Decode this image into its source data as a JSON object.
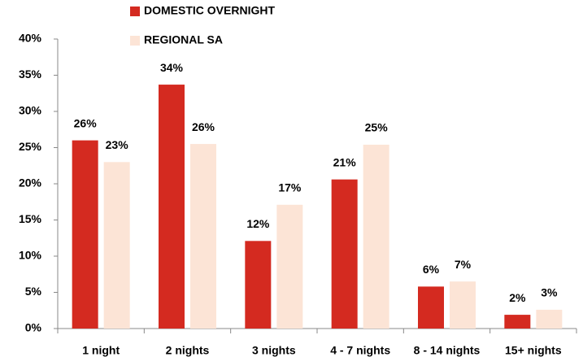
{
  "chart_data": {
    "type": "bar",
    "categories": [
      "1 night",
      "2 nights",
      "3 nights",
      "4 - 7 nights",
      "8 - 14 nights",
      "15+ nights"
    ],
    "series": [
      {
        "name": "DOMESTIC OVERNIGHT",
        "color": "#d42a20",
        "values": [
          26,
          33.7,
          12.1,
          20.6,
          5.8,
          1.9
        ],
        "value_labels": [
          "26%",
          "34%",
          "12%",
          "21%",
          "6%",
          "2%"
        ]
      },
      {
        "name": "REGIONAL SA",
        "color": "#fce4d6",
        "values": [
          23,
          25.5,
          17.1,
          25.4,
          6.5,
          2.6
        ],
        "value_labels": [
          "23%",
          "26%",
          "17%",
          "25%",
          "7%",
          "3%"
        ]
      }
    ],
    "ylim": [
      0,
      40
    ],
    "yticks": [
      {
        "value": 0,
        "label": "0%"
      },
      {
        "value": 5,
        "label": "5%"
      },
      {
        "value": 10,
        "label": "10%"
      },
      {
        "value": 15,
        "label": "15%"
      },
      {
        "value": 20,
        "label": "20%"
      },
      {
        "value": 25,
        "label": "25%"
      },
      {
        "value": 30,
        "label": "30%"
      },
      {
        "value": 35,
        "label": "35%"
      },
      {
        "value": 40,
        "label": "40%"
      }
    ],
    "grid": false,
    "legend": "top"
  }
}
